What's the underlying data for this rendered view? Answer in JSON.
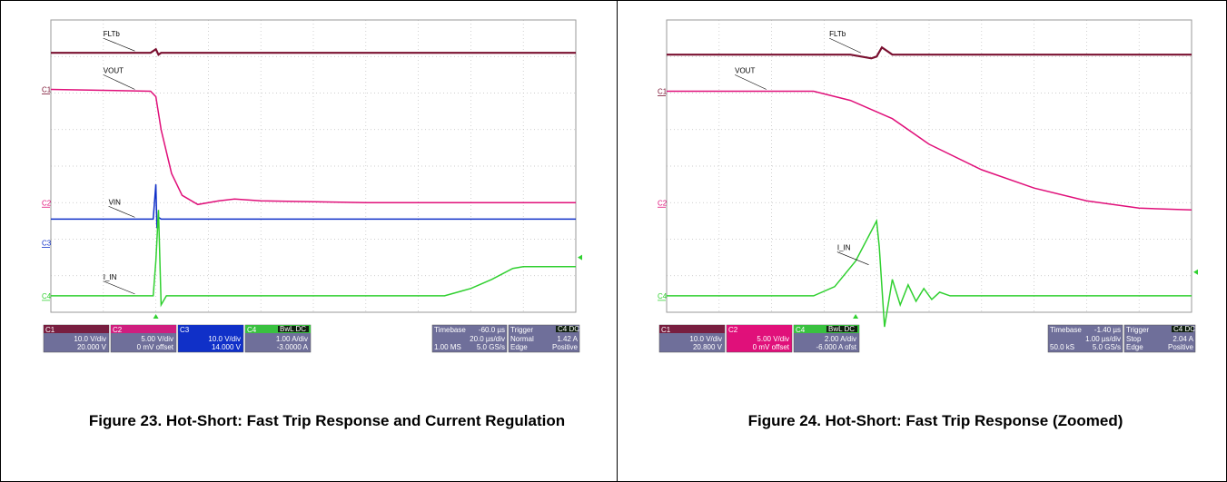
{
  "captions": {
    "fig23": "Figure 23. Hot-Short: Fast Trip Response and Current Regulation",
    "fig24": "Figure 24. Hot-Short: Fast Trip Response (Zoomed)"
  },
  "colors": {
    "fltb": "#7a1030",
    "vout": "#e0107a",
    "vin": "#1030c8",
    "iin": "#30d030",
    "grid": "#bfbfbf",
    "panel_bg": "#ffffff",
    "box_bg": "#6f6f9a"
  },
  "chart_data": [
    {
      "type": "line",
      "title": "Figure 23. Hot-Short: Fast Trip Response and Current Regulation",
      "grid": true,
      "x_divisions": 10,
      "y_divisions": 8,
      "trace_labels": [
        "FLTb",
        "VOUT",
        "VIN",
        "I_IN"
      ],
      "channel_markers": [
        "C1",
        "C2",
        "C3",
        "C4"
      ],
      "series": [
        {
          "name": "FLTb",
          "x": [
            0,
            1.9,
            2.0,
            2.05,
            2.1,
            10
          ],
          "y": [
            7.1,
            7.1,
            7.2,
            7.05,
            7.1,
            7.1
          ]
        },
        {
          "name": "VOUT",
          "x": [
            0,
            1.9,
            2.0,
            2.1,
            2.3,
            2.5,
            2.8,
            3.2,
            3.5,
            4,
            6,
            10
          ],
          "y": [
            6.1,
            6.05,
            5.9,
            5.0,
            3.8,
            3.2,
            2.95,
            3.05,
            3.1,
            3.05,
            3.0,
            3.0
          ]
        },
        {
          "name": "VIN",
          "x": [
            0,
            1.95,
            2.0,
            2.02,
            2.05,
            2.1,
            10
          ],
          "y": [
            2.55,
            2.55,
            3.5,
            2.3,
            2.6,
            2.55,
            2.55
          ]
        },
        {
          "name": "I_IN",
          "x": [
            0,
            1.95,
            2.0,
            2.05,
            2.1,
            2.2,
            7.5,
            8.0,
            8.4,
            8.8,
            9.0,
            10
          ],
          "y": [
            0.45,
            0.45,
            1.4,
            2.8,
            0.2,
            0.45,
            0.45,
            0.65,
            0.9,
            1.2,
            1.25,
            1.25
          ]
        }
      ],
      "info": {
        "c1": {
          "name": "C1",
          "line1": "10.0 V/div",
          "line2": "20.000 V"
        },
        "c2": {
          "name": "C2",
          "line1": "5.00 V/div",
          "line2": "0 mV offset"
        },
        "c3": {
          "name": "C3",
          "line1": "10.0 V/div",
          "line2": "14.000 V"
        },
        "c4": {
          "name": "C4",
          "badge": "BwL DC",
          "line1": "1.00 A/div",
          "line2": "-3.0000 A"
        },
        "timebase": {
          "title": "Timebase",
          "value": "-60.0 µs",
          "line1": "20.0 µs/div",
          "line2a": "1.00 MS",
          "line2b": "5.0 GS/s"
        },
        "trigger": {
          "title": "Trigger",
          "badge": "C4 DC",
          "mode": "Normal",
          "level": "1.42 A",
          "type": "Edge",
          "slope": "Positive"
        }
      }
    },
    {
      "type": "line",
      "title": "Figure 24. Hot-Short: Fast Trip Response (Zoomed)",
      "grid": true,
      "x_divisions": 10,
      "y_divisions": 8,
      "trace_labels": [
        "FLTb",
        "VOUT",
        "I_IN"
      ],
      "channel_markers": [
        "C1",
        "C2",
        "C4"
      ],
      "series": [
        {
          "name": "FLTb",
          "x": [
            0,
            3.5,
            3.9,
            4.0,
            4.1,
            4.3,
            4.6,
            10
          ],
          "y": [
            7.05,
            7.05,
            6.95,
            7.0,
            7.25,
            7.05,
            7.05,
            7.05
          ]
        },
        {
          "name": "VOUT",
          "x": [
            0,
            2.8,
            3.5,
            4.3,
            5,
            6,
            7,
            8,
            9,
            10
          ],
          "y": [
            6.05,
            6.05,
            5.8,
            5.3,
            4.6,
            3.9,
            3.4,
            3.05,
            2.85,
            2.8
          ]
        },
        {
          "name": "I_IN",
          "x": [
            0,
            2.8,
            3.2,
            3.6,
            4.0,
            4.05,
            4.15,
            4.3,
            4.45,
            4.6,
            4.75,
            4.9,
            5.05,
            5.2,
            5.4,
            10
          ],
          "y": [
            0.45,
            0.45,
            0.7,
            1.4,
            2.5,
            1.8,
            -0.4,
            0.9,
            0.2,
            0.75,
            0.3,
            0.65,
            0.35,
            0.55,
            0.45,
            0.45
          ]
        }
      ],
      "info": {
        "c1": {
          "name": "C1",
          "line1": "10.0 V/div",
          "line2": "20.800 V"
        },
        "c2": {
          "name": "C2",
          "line1": "5.00 V/div",
          "line2": "0 mV offset"
        },
        "c4": {
          "name": "C4",
          "badge": "BwL DC",
          "line1": "2.00 A/div",
          "line2": "-6.000 A ofst"
        },
        "timebase": {
          "title": "Timebase",
          "value": "-1.40 µs",
          "line1": "1.00 µs/div",
          "line2a": "50.0 kS",
          "line2b": "5.0 GS/s"
        },
        "trigger": {
          "title": "Trigger",
          "badge": "C4 DC",
          "mode": "Stop",
          "level": "2.04 A",
          "type": "Edge",
          "slope": "Positive"
        }
      }
    }
  ]
}
